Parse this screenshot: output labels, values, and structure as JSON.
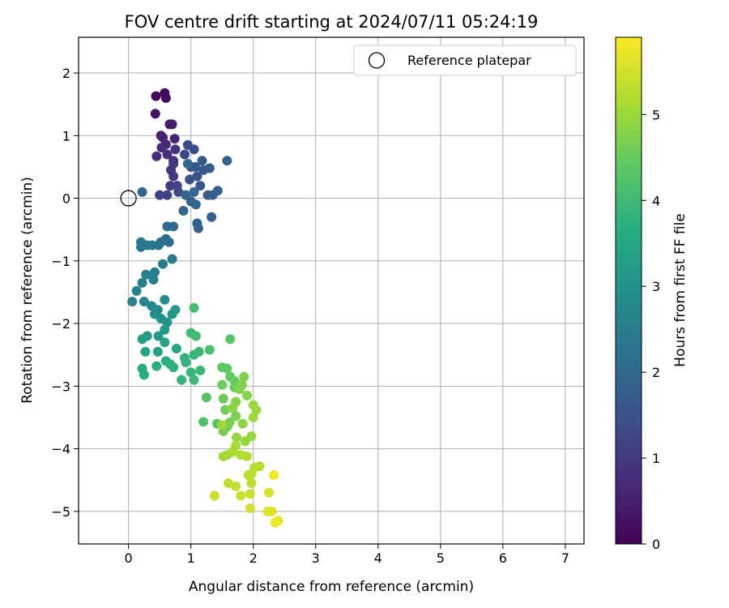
{
  "chart_data": {
    "type": "scatter",
    "title": "FOV centre drift starting at 2024/07/11 05:24:19",
    "xlabel": "Angular distance from reference (arcmin)",
    "ylabel": "Rotation from reference (arcmin)",
    "xlim": [
      -0.8,
      7.3
    ],
    "ylim": [
      -5.52,
      2.57
    ],
    "x_ticks": [
      0,
      1,
      2,
      3,
      4,
      5,
      6,
      7
    ],
    "y_ticks": [
      -5,
      -4,
      -3,
      -2,
      -1,
      0,
      1,
      2
    ],
    "grid": true,
    "legend": {
      "position": "top-right",
      "entries": [
        "Reference platepar"
      ]
    },
    "reference_point": {
      "x": 0,
      "y": 0
    },
    "colorbar": {
      "label": "Hours from first FF file",
      "range": [
        0,
        5.9
      ],
      "ticks": [
        0,
        1,
        2,
        3,
        4,
        5
      ],
      "colormap": "viridis"
    },
    "series": [
      {
        "points": [
          [
            0.44,
            1.63,
            0.1
          ],
          [
            0.58,
            1.68,
            0.15
          ],
          [
            0.6,
            1.6,
            0.2
          ],
          [
            0.43,
            1.35,
            0.3
          ],
          [
            0.66,
            1.18,
            0.4
          ],
          [
            0.7,
            1.18,
            0.45
          ],
          [
            0.52,
            1.0,
            0.5
          ],
          [
            0.55,
            0.97,
            0.55
          ],
          [
            0.74,
            0.95,
            0.6
          ],
          [
            0.6,
            0.86,
            0.65
          ],
          [
            0.53,
            0.81,
            0.7
          ],
          [
            0.45,
            0.67,
            0.75
          ],
          [
            0.62,
            0.7,
            0.8
          ],
          [
            0.75,
            0.78,
            0.85
          ],
          [
            0.72,
            0.6,
            0.9
          ],
          [
            0.72,
            0.55,
            0.92
          ],
          [
            0.68,
            0.45,
            0.95
          ],
          [
            0.72,
            0.35,
            1.0
          ],
          [
            0.67,
            0.2,
            1.05
          ],
          [
            0.62,
            0.05,
            1.1
          ],
          [
            0.5,
            0.05,
            1.15
          ],
          [
            0.78,
            0.2,
            1.2
          ],
          [
            0.8,
            0.1,
            1.25
          ],
          [
            0.9,
            0.7,
            1.3
          ],
          [
            0.95,
            0.85,
            1.35
          ],
          [
            1.05,
            0.78,
            1.4
          ],
          [
            1.0,
            0.5,
            1.45
          ],
          [
            0.98,
            0.3,
            1.5
          ],
          [
            1.1,
            0.35,
            1.55
          ],
          [
            1.15,
            0.2,
            1.6
          ],
          [
            1.07,
            0.5,
            1.62
          ],
          [
            1.18,
            0.6,
            1.65
          ],
          [
            1.2,
            0.45,
            1.68
          ],
          [
            1.3,
            0.48,
            1.7
          ],
          [
            1.27,
            0.05,
            1.72
          ],
          [
            1.35,
            0.05,
            1.75
          ],
          [
            1.43,
            0.12,
            1.77
          ],
          [
            1.33,
            -0.3,
            1.8
          ],
          [
            1.1,
            -0.4,
            1.82
          ],
          [
            1.12,
            -0.48,
            1.84
          ],
          [
            1.0,
            -0.05,
            1.86
          ],
          [
            0.92,
            0.05,
            1.88
          ],
          [
            0.88,
            -0.2,
            1.9
          ],
          [
            1.58,
            0.6,
            1.92
          ],
          [
            0.22,
            0.1,
            1.94
          ],
          [
            1.08,
            -0.1,
            1.96
          ],
          [
            0.95,
            0.55,
            1.98
          ],
          [
            1.05,
            0.1,
            2.0
          ],
          [
            0.72,
            -0.45,
            2.02
          ],
          [
            0.62,
            -0.45,
            2.05
          ],
          [
            0.6,
            -0.65,
            2.1
          ],
          [
            0.65,
            -0.7,
            2.15
          ],
          [
            0.52,
            -0.7,
            2.2
          ],
          [
            0.48,
            -0.75,
            2.25
          ],
          [
            0.38,
            -0.75,
            2.3
          ],
          [
            0.2,
            -0.78,
            2.35
          ],
          [
            0.2,
            -0.7,
            2.38
          ],
          [
            0.3,
            -0.75,
            2.4
          ],
          [
            0.7,
            -0.97,
            2.42
          ],
          [
            0.55,
            -1.05,
            2.45
          ],
          [
            0.42,
            -1.18,
            2.48
          ],
          [
            0.28,
            -1.22,
            2.5
          ],
          [
            0.4,
            -1.3,
            2.55
          ],
          [
            0.22,
            -1.35,
            2.58
          ],
          [
            0.13,
            -1.48,
            2.6
          ],
          [
            0.06,
            -1.65,
            2.62
          ],
          [
            0.25,
            -1.65,
            2.7
          ],
          [
            0.37,
            -1.72,
            2.75
          ],
          [
            0.47,
            -1.78,
            2.8
          ],
          [
            0.58,
            -1.62,
            2.85
          ],
          [
            0.42,
            -1.85,
            2.9
          ],
          [
            0.52,
            -1.92,
            2.95
          ],
          [
            0.62,
            -1.98,
            3.0
          ],
          [
            0.7,
            -1.85,
            3.05
          ],
          [
            0.75,
            -1.78,
            3.1
          ],
          [
            0.58,
            -2.1,
            3.15
          ],
          [
            0.48,
            -2.2,
            3.2
          ],
          [
            0.3,
            -2.2,
            3.25
          ],
          [
            0.22,
            -2.25,
            3.3
          ],
          [
            0.58,
            -2.3,
            3.35
          ],
          [
            0.47,
            -2.45,
            3.4
          ],
          [
            0.27,
            -2.45,
            3.45
          ],
          [
            0.77,
            -2.4,
            3.5
          ],
          [
            0.22,
            -2.72,
            3.55
          ],
          [
            0.25,
            -2.82,
            3.6
          ],
          [
            0.45,
            -2.68,
            3.65
          ],
          [
            0.6,
            -2.6,
            3.7
          ],
          [
            0.67,
            -2.65,
            3.75
          ],
          [
            0.72,
            -2.7,
            3.78
          ],
          [
            0.9,
            -2.55,
            3.8
          ],
          [
            0.92,
            -2.62,
            3.82
          ],
          [
            0.85,
            -2.9,
            3.85
          ],
          [
            1.0,
            -2.78,
            3.88
          ],
          [
            1.05,
            -2.5,
            3.9
          ],
          [
            1.13,
            -2.45,
            3.92
          ],
          [
            1.15,
            -2.75,
            3.95
          ],
          [
            1.05,
            -2.9,
            3.97
          ],
          [
            1.0,
            -2.15,
            4.0
          ],
          [
            1.08,
            -2.2,
            4.05
          ],
          [
            1.05,
            -1.75,
            4.1
          ],
          [
            1.3,
            -2.42,
            4.15
          ],
          [
            1.2,
            -3.57,
            4.2
          ],
          [
            1.42,
            -3.6,
            4.25
          ],
          [
            1.25,
            -3.18,
            4.3
          ],
          [
            1.63,
            -2.25,
            4.35
          ],
          [
            1.5,
            -2.7,
            4.4
          ],
          [
            1.58,
            -2.72,
            4.42
          ],
          [
            1.63,
            -2.85,
            4.45
          ],
          [
            1.7,
            -2.92,
            4.5
          ],
          [
            1.7,
            -3.02,
            4.52
          ],
          [
            1.5,
            -2.98,
            4.55
          ],
          [
            1.52,
            -3.2,
            4.57
          ],
          [
            1.55,
            -3.38,
            4.6
          ],
          [
            1.58,
            -3.65,
            4.62
          ],
          [
            1.52,
            -3.72,
            4.65
          ],
          [
            1.62,
            -3.58,
            4.67
          ],
          [
            1.72,
            -3.48,
            4.7
          ],
          [
            1.85,
            -2.85,
            4.72
          ],
          [
            1.82,
            -2.98,
            4.75
          ],
          [
            1.78,
            -3.05,
            4.78
          ],
          [
            1.9,
            -3.15,
            4.8
          ],
          [
            1.72,
            -3.25,
            4.82
          ],
          [
            1.67,
            -3.35,
            4.85
          ],
          [
            1.83,
            -3.6,
            4.87
          ],
          [
            1.73,
            -3.82,
            4.9
          ],
          [
            1.87,
            -3.88,
            4.92
          ],
          [
            1.97,
            -3.8,
            4.95
          ],
          [
            2.0,
            -3.3,
            4.97
          ],
          [
            2.05,
            -3.38,
            5.0
          ],
          [
            2.0,
            -3.5,
            5.02
          ],
          [
            1.5,
            -3.62,
            5.05
          ],
          [
            1.52,
            -4.12,
            5.08
          ],
          [
            1.58,
            -4.1,
            5.1
          ],
          [
            1.67,
            -4.05,
            5.12
          ],
          [
            1.72,
            -3.95,
            5.15
          ],
          [
            1.8,
            -4.1,
            5.17
          ],
          [
            1.9,
            -4.12,
            5.2
          ],
          [
            2.02,
            -4.3,
            5.22
          ],
          [
            2.1,
            -4.28,
            5.25
          ],
          [
            1.97,
            -4.4,
            5.27
          ],
          [
            1.92,
            -4.42,
            5.3
          ],
          [
            1.97,
            -4.55,
            5.32
          ],
          [
            1.6,
            -4.55,
            5.35
          ],
          [
            1.72,
            -4.6,
            5.37
          ],
          [
            1.8,
            -4.75,
            5.4
          ],
          [
            1.95,
            -4.72,
            5.42
          ],
          [
            1.38,
            -4.75,
            5.45
          ],
          [
            1.95,
            -4.95,
            5.5
          ],
          [
            2.25,
            -4.7,
            5.55
          ],
          [
            2.23,
            -5.0,
            5.6
          ],
          [
            2.3,
            -5.0,
            5.65
          ],
          [
            2.4,
            -5.15,
            5.7
          ],
          [
            2.35,
            -5.18,
            5.75
          ],
          [
            2.33,
            -4.42,
            5.8
          ]
        ]
      }
    ]
  }
}
